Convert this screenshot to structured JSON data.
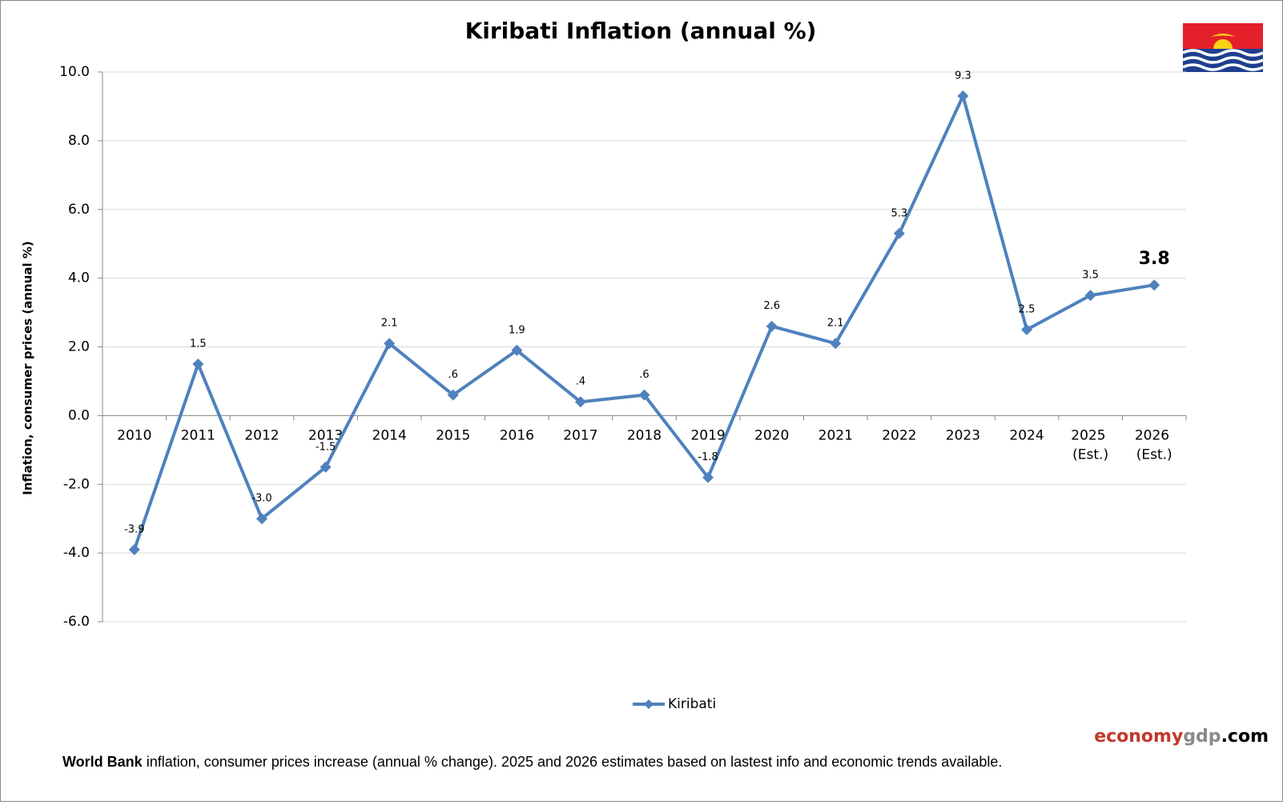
{
  "chart_data": {
    "type": "line",
    "title": "Kiribati Inflation (annual %)",
    "y_label": "Inflation, consumer prices (annual %)",
    "categories": [
      "2010",
      "2011",
      "2012",
      "2013",
      "2014",
      "2015",
      "2016",
      "2017",
      "2018",
      "2019",
      "2020",
      "2021",
      "2022",
      "2023",
      "2024",
      "2025 (Est.)",
      "2026 (Est.)"
    ],
    "series": [
      {
        "name": "Kiribati",
        "color": "#4f81bd",
        "values": [
          -3.9,
          1.5,
          -3.0,
          -1.5,
          2.1,
          0.6,
          1.9,
          0.4,
          0.6,
          -1.8,
          2.6,
          2.1,
          5.3,
          9.3,
          2.5,
          3.5,
          3.8
        ],
        "value_labels": [
          "-3.9",
          "1.5",
          "-3.0",
          "-1.5",
          "2.1",
          ".6",
          "1.9",
          ".4",
          ".6",
          "-1.8",
          "2.6",
          "2.1",
          "5.3",
          "9.3",
          "2.5",
          "3.5",
          "3.8"
        ]
      }
    ],
    "ylim": [
      -6,
      10
    ],
    "yticks": [
      {
        "value": -6,
        "label": "-6.0"
      },
      {
        "value": -4,
        "label": "-4.0"
      },
      {
        "value": -2,
        "label": "-2.0"
      },
      {
        "value": 0,
        "label": "0.0"
      },
      {
        "value": 2,
        "label": "2.0"
      },
      {
        "value": 4,
        "label": "4.0"
      },
      {
        "value": 6,
        "label": "6.0"
      },
      {
        "value": 8,
        "label": "8.0"
      },
      {
        "value": 10,
        "label": "10.0"
      }
    ],
    "grid": true,
    "legend": "bottom",
    "brand": [
      "economy",
      "gdp",
      ".com"
    ],
    "footnote": {
      "bold": "World Bank",
      "text": "inflation, consumer prices increase (annual % change).  2025 and 2026 estimates based on lastest info and economic trends available."
    }
  }
}
